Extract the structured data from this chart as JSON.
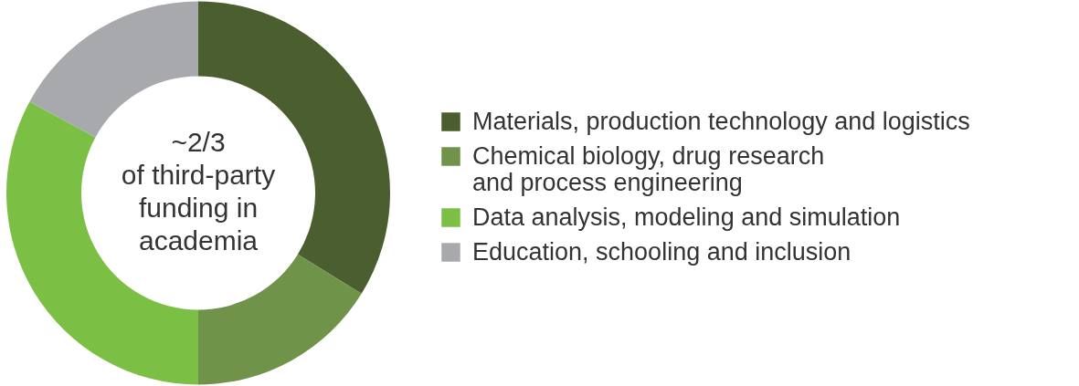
{
  "chart_data": {
    "type": "donut",
    "categories": [
      "Materials, production technology and logistics",
      "Chemical biology, drug research and process engineering",
      "Data analysis, modeling and simulation",
      "Education, schooling and inclusion"
    ],
    "values": [
      33.8,
      16.2,
      32.9,
      17.1
    ],
    "colors": [
      "#4a5e2f",
      "#70934a",
      "#7cbf45",
      "#a7a9ac"
    ],
    "annotations": [
      "~2/3\nof third-party\nfunding in\nacademia"
    ],
    "legend": "right"
  }
}
